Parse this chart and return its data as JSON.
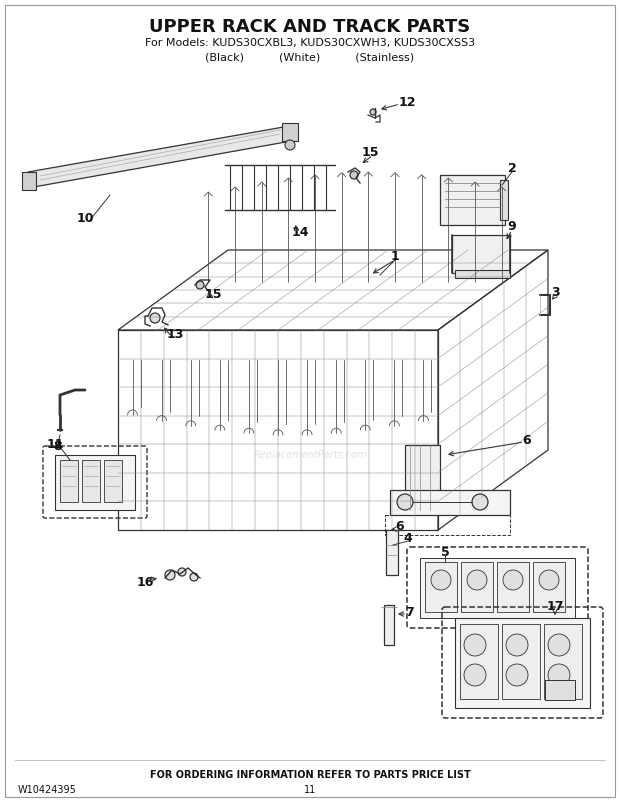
{
  "title": "UPPER RACK AND TRACK PARTS",
  "subtitle": "For Models: KUDS30CXBL3, KUDS30CXWH3, KUDS30CXSS3",
  "subtitle2": "(Black)          (White)          (Stainless)",
  "footer_left": "W10424395",
  "footer_center": "FOR ORDERING INFORMATION REFER TO PARTS PRICE LIST",
  "footer_page": "11",
  "bg": "#ffffff",
  "line_color": "#333333",
  "label_color": "#111111"
}
